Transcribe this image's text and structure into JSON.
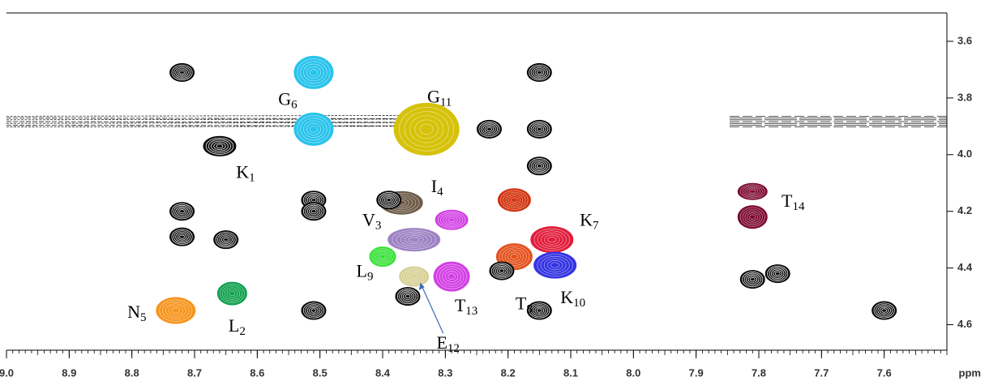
{
  "chart_data": {
    "type": "contour",
    "x_label": "ppm",
    "xlim": [
      9.0,
      7.5
    ],
    "ylim": [
      3.5,
      4.69
    ],
    "xticks": [
      {
        "value": 9.0,
        "label": "9.0"
      },
      8.9,
      8.8,
      8.7,
      8.6,
      8.5,
      8.4,
      8.3,
      8.2,
      8.1,
      {
        "value": 8.0,
        "label": "8.0"
      },
      7.9,
      7.8,
      7.7,
      7.6
    ],
    "yticks": [
      3.6,
      3.8,
      {
        "value": 4.0,
        "label": "4.0"
      },
      4.2,
      4.4,
      4.6
    ],
    "peaks": [
      {
        "x": 8.51,
        "y": 3.71,
        "color": "#29c3ec"
      },
      {
        "x": 8.51,
        "y": 3.91,
        "color": "#29c3ec",
        "label": {
          "residue": "G",
          "number": "6"
        }
      },
      {
        "x": 8.33,
        "y": 3.91,
        "color": "#d6c20a",
        "label": {
          "residue": "G",
          "number": "11"
        }
      },
      {
        "x": 8.66,
        "y": 3.97,
        "color": "#111111",
        "label": {
          "residue": "K",
          "number": "1"
        }
      },
      {
        "x": 8.37,
        "y": 4.17,
        "color": "#6e5b48",
        "label": {
          "residue": "I",
          "number": "4"
        }
      },
      {
        "x": 8.35,
        "y": 4.3,
        "color": "#9d82c4",
        "label": {
          "residue": "V",
          "number": "3"
        }
      },
      {
        "x": 8.4,
        "y": 4.36,
        "color": "#33e033",
        "label": {
          "residue": "L",
          "number": "9"
        }
      },
      {
        "x": 8.35,
        "y": 4.43,
        "color": "#d6cf92",
        "label": {
          "residue": "E",
          "number": "12"
        }
      },
      {
        "x": 8.29,
        "y": 4.43,
        "color": "#d23fe4",
        "label": {
          "residue": "T",
          "number": "13"
        }
      },
      {
        "x": 8.29,
        "y": 4.23,
        "color": "#d23fe4"
      },
      {
        "x": 8.19,
        "y": 4.36,
        "color": "#e4521e",
        "label": {
          "residue": "T",
          "number": "8"
        }
      },
      {
        "x": 8.19,
        "y": 4.16,
        "color": "#d3340f"
      },
      {
        "x": 8.13,
        "y": 4.3,
        "color": "#e21d3c",
        "label": {
          "residue": "K",
          "number": "7"
        }
      },
      {
        "x": 8.125,
        "y": 4.39,
        "color": "#3434e2",
        "label": {
          "residue": "K",
          "number": "10"
        }
      },
      {
        "x": 7.81,
        "y": 4.13,
        "color": "#7d0a30",
        "label": {
          "residue": "T",
          "number": "14"
        }
      },
      {
        "x": 7.81,
        "y": 4.22,
        "color": "#7d0a30"
      },
      {
        "x": 8.73,
        "y": 4.55,
        "color": "#f7941d",
        "label": {
          "residue": "N",
          "number": "5"
        }
      },
      {
        "x": 8.64,
        "y": 4.49,
        "color": "#0fa04e",
        "label": {
          "residue": "L",
          "number": "2"
        }
      },
      {
        "x": 8.72,
        "y": 3.71,
        "color": "#111111"
      },
      {
        "x": 8.15,
        "y": 3.71,
        "color": "#111111"
      },
      {
        "x": 8.15,
        "y": 3.91,
        "color": "#111111"
      },
      {
        "x": 8.72,
        "y": 4.2,
        "color": "#111111"
      },
      {
        "x": 8.72,
        "y": 4.29,
        "color": "#111111"
      },
      {
        "x": 8.51,
        "y": 4.16,
        "color": "#111111"
      },
      {
        "x": 8.51,
        "y": 4.2,
        "color": "#111111"
      },
      {
        "x": 8.51,
        "y": 4.55,
        "color": "#111111"
      },
      {
        "x": 8.15,
        "y": 4.04,
        "color": "#111111"
      },
      {
        "x": 8.65,
        "y": 4.3,
        "color": "#111111"
      },
      {
        "x": 8.36,
        "y": 4.5,
        "color": "#111111"
      },
      {
        "x": 8.21,
        "y": 4.41,
        "color": "#111111"
      },
      {
        "x": 8.15,
        "y": 4.55,
        "color": "#111111"
      },
      {
        "x": 7.81,
        "y": 4.44,
        "color": "#111111"
      },
      {
        "x": 7.77,
        "y": 4.42,
        "color": "#111111"
      },
      {
        "x": 7.6,
        "y": 4.55,
        "color": "#111111"
      },
      {
        "x": 8.39,
        "y": 4.16,
        "color": "#111111"
      },
      {
        "x": 8.23,
        "y": 3.91,
        "color": "#111111"
      }
    ]
  }
}
